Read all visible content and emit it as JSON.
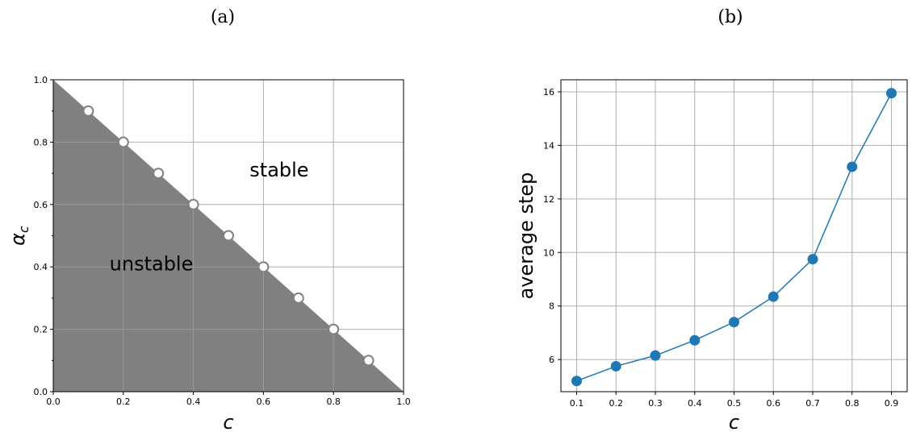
{
  "panels": [
    {
      "label": "(a)"
    },
    {
      "label": "(b)"
    }
  ],
  "chart_data": [
    {
      "type": "area",
      "panel": "(a)",
      "xlabel": "c",
      "ylabel": "α_c",
      "xlim": [
        0.0,
        1.0
      ],
      "ylim": [
        0.0,
        1.0
      ],
      "xticks": [
        "0.0",
        "0.2",
        "0.4",
        "0.6",
        "0.8",
        "1.0"
      ],
      "yticks": [
        "0.0",
        "0.2",
        "0.4",
        "0.6",
        "0.8",
        "1.0"
      ],
      "grid": true,
      "region_labels": [
        {
          "text": "stable",
          "x": 0.645,
          "y": 0.71
        },
        {
          "text": "unstable",
          "x": 0.28,
          "y": 0.41
        }
      ],
      "boundary": {
        "x": [
          0.0,
          1.0
        ],
        "y": [
          1.0,
          0.0
        ]
      },
      "points": {
        "x": [
          0.1,
          0.2,
          0.3,
          0.4,
          0.5,
          0.6,
          0.7,
          0.8,
          0.9
        ],
        "y": [
          0.9,
          0.8,
          0.7,
          0.6,
          0.5,
          0.4,
          0.3,
          0.2,
          0.1
        ]
      },
      "colors": {
        "unstable_fill": "#808080",
        "marker_face": "#ffffff",
        "marker_edge": "#808080"
      }
    },
    {
      "type": "line",
      "panel": "(b)",
      "xlabel": "c",
      "ylabel": "average step",
      "x": [
        0.1,
        0.2,
        0.3,
        0.4,
        0.5,
        0.6,
        0.7,
        0.8,
        0.9
      ],
      "y": [
        5.2,
        5.75,
        6.15,
        6.72,
        7.4,
        8.35,
        9.75,
        13.2,
        15.95
      ],
      "xticks": [
        "0.1",
        "0.2",
        "0.3",
        "0.4",
        "0.5",
        "0.6",
        "0.7",
        "0.8",
        "0.9"
      ],
      "yticks": [
        "6",
        "8",
        "10",
        "12",
        "14",
        "16"
      ],
      "xlim": [
        0.06,
        0.94
      ],
      "ylim": [
        4.8,
        16.45
      ],
      "grid": true,
      "colors": {
        "line": "#1f77b4"
      }
    }
  ]
}
